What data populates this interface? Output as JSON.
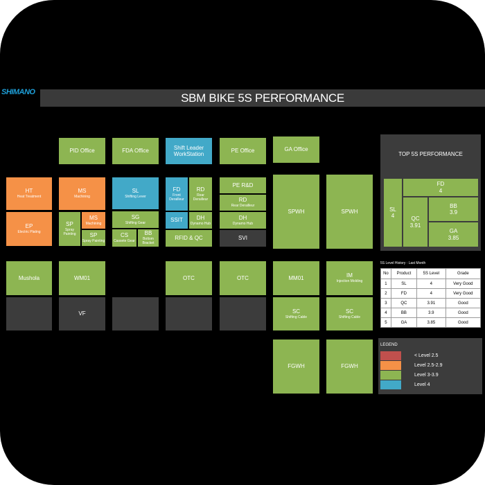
{
  "logo": "SHIMANO",
  "title": "SBM BIKE 5S PERFORMANCE",
  "offices": {
    "pid": "PID Office",
    "fda": "FDA Office",
    "shift_leader": "Shift Leader WorkStation",
    "pe": "PE Office",
    "ga": "GA Office"
  },
  "areas": {
    "ht": {
      "code": "HT",
      "name": "Heat Treatment"
    },
    "ep": {
      "code": "EP",
      "name": "Electric Plating"
    },
    "ms1": {
      "code": "MS",
      "name": "Machining"
    },
    "sp1": {
      "code": "SP",
      "name": "Spray Painting"
    },
    "ms2": {
      "code": "MS",
      "name": "Machining"
    },
    "sp2": {
      "code": "SP",
      "name": "Spray Painting"
    },
    "sl": {
      "code": "SL",
      "name": "Shifting Lever"
    },
    "sg": {
      "code": "SG",
      "name": "Shifting Gear"
    },
    "cs": {
      "code": "CS",
      "name": "Cassete Gear"
    },
    "bb": {
      "code": "BB",
      "name": "Bottom Bracket"
    },
    "fd": {
      "code": "FD",
      "name": "Front Derailleur"
    },
    "rd1": {
      "code": "RD",
      "name": "Rear Derailleur"
    },
    "ssit": {
      "code": "SSIT"
    },
    "dh1": {
      "code": "DH",
      "name": "Dynamo Hub"
    },
    "rfid": {
      "code": "RFID & QC"
    },
    "pe_rd": {
      "code": "PE R&D"
    },
    "rd2": {
      "code": "RD",
      "name": "Rear Derailleur"
    },
    "dh2": {
      "code": "DH",
      "name": "Dynamo Hub"
    },
    "svi": {
      "code": "SVI"
    },
    "spwh1": {
      "code": "SPWH"
    },
    "spwh2": {
      "code": "SPWH"
    },
    "mushola": {
      "code": "Mushola"
    },
    "wm01": {
      "code": "WM01"
    },
    "otc1": {
      "code": "OTC"
    },
    "otc2": {
      "code": "OTC"
    },
    "mm01": {
      "code": "MM01"
    },
    "im": {
      "code": "IM",
      "name": "Injection Molding"
    },
    "vf": {
      "code": "VF"
    },
    "sc1": {
      "code": "SC",
      "name": "Shifting Cable"
    },
    "sc2": {
      "code": "SC",
      "name": "Shifting Cable"
    },
    "fgwh1": {
      "code": "FGWH"
    },
    "fgwh2": {
      "code": "FGWH"
    }
  },
  "top5s": {
    "title": "TOP 5S PERFORMANCE",
    "items": [
      {
        "name": "SL",
        "value": "4"
      },
      {
        "name": "FD",
        "value": "4"
      },
      {
        "name": "QC",
        "value": "3.91"
      },
      {
        "name": "BB",
        "value": "3.9"
      },
      {
        "name": "GA",
        "value": "3.85"
      }
    ]
  },
  "history": {
    "title": "5S Level History : Last Month",
    "headers": [
      "No",
      "Product",
      "5S Level",
      "Grade"
    ],
    "rows": [
      [
        "1",
        "SL",
        "4",
        "Very Good"
      ],
      [
        "2",
        "FD",
        "4",
        "Very Good"
      ],
      [
        "3",
        "QC",
        "3.91",
        "Good"
      ],
      [
        "4",
        "BB",
        "3.9",
        "Good"
      ],
      [
        "5",
        "GA",
        "3.85",
        "Good"
      ]
    ]
  },
  "legend": {
    "title": "LEGEND",
    "items": [
      {
        "label": "< Level 2.5",
        "color": "#c0504d"
      },
      {
        "label": "Level 2.5-2.9",
        "color": "#f59147"
      },
      {
        "label": "Level 3-3.9",
        "color": "#8db552"
      },
      {
        "label": "Level 4",
        "color": "#42a9c8"
      }
    ]
  }
}
